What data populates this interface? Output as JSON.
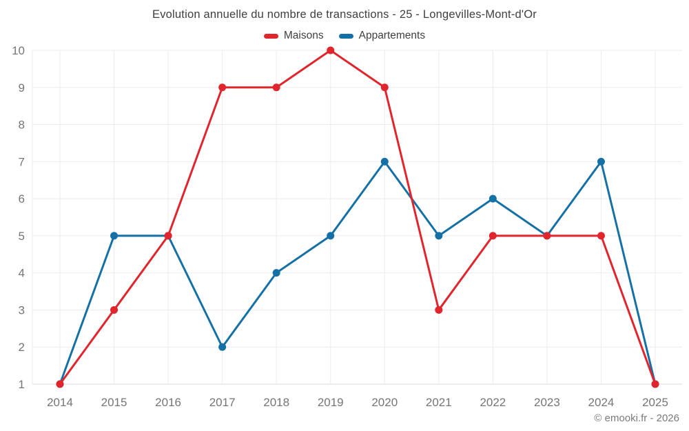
{
  "chart_data": {
    "type": "line",
    "title": "Evolution annuelle du nombre de transactions - 25 - Longevilles-Mont-d'Or",
    "x": [
      "2014",
      "2015",
      "2016",
      "2017",
      "2018",
      "2019",
      "2020",
      "2021",
      "2022",
      "2023",
      "2024",
      "2025"
    ],
    "series": [
      {
        "name": "Maisons",
        "color": "#e0252c",
        "values": [
          1,
          3,
          5,
          9,
          9,
          10,
          9,
          3,
          5,
          5,
          5,
          1
        ]
      },
      {
        "name": "Appartements",
        "color": "#1570a6",
        "values": [
          1,
          5,
          5,
          2,
          4,
          5,
          7,
          5,
          6,
          5,
          7,
          1
        ]
      }
    ],
    "ylim": [
      1,
      10
    ],
    "yticks": [
      1,
      2,
      3,
      4,
      5,
      6,
      7,
      8,
      9,
      10
    ],
    "grid": true,
    "legend_position": "top",
    "xlabel": "",
    "ylabel": ""
  },
  "legend": {
    "items": [
      {
        "label": "Maisons",
        "color": "#e0252c"
      },
      {
        "label": "Appartements",
        "color": "#1570a6"
      }
    ]
  },
  "footer": {
    "credit": "© emooki.fr - 2026"
  },
  "colors": {
    "maisons_red": "#e0252c",
    "appartements_blue": "#1570a6",
    "grid_line": "#ebebeb",
    "axis_line": "#d8d8d8",
    "tick_text": "#757575",
    "title_text": "#3f3f3f",
    "background": "#ffffff"
  }
}
